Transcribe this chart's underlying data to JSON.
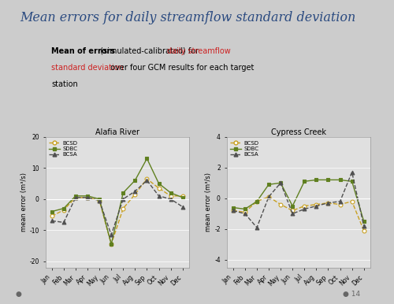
{
  "title": "Mean errors for daily streamflow standard deviation",
  "months": [
    "Jan",
    "Feb",
    "Mar",
    "Apr",
    "May",
    "Jun",
    "Jul",
    "Aug",
    "Sep",
    "Oct",
    "Nov",
    "Dec"
  ],
  "alafia": {
    "title": "Alafia River",
    "ylabel": "mean error (m³/s)",
    "ylim": [
      -22,
      20
    ],
    "yticks": [
      -20,
      -10,
      0,
      10,
      20
    ],
    "BCSD": [
      -5.5,
      -3.5,
      0.5,
      0.5,
      -0.5,
      -14.5,
      -3.0,
      1.5,
      6.5,
      3.5,
      1.0,
      1.0
    ],
    "SDBC": [
      -4.0,
      -3.0,
      1.0,
      1.0,
      0.0,
      -14.5,
      2.0,
      6.0,
      13.0,
      5.0,
      2.0,
      0.5
    ],
    "BCSA": [
      -7.0,
      -7.5,
      0.5,
      0.5,
      -0.5,
      -11.5,
      0.0,
      2.5,
      6.0,
      1.0,
      0.0,
      -2.5
    ]
  },
  "cypress": {
    "title": "Cypress Creek",
    "ylabel": "mean error (m³/s)",
    "ylim": [
      -4.5,
      4.0
    ],
    "yticks": [
      -4,
      -2,
      0,
      2,
      4
    ],
    "BCSD": [
      -0.8,
      -0.9,
      -0.2,
      0.1,
      -0.4,
      -0.8,
      -0.5,
      -0.4,
      -0.3,
      -0.4,
      -0.2,
      -2.1
    ],
    "SDBC": [
      -0.6,
      -0.7,
      -0.2,
      0.9,
      1.0,
      -0.5,
      1.1,
      1.2,
      1.2,
      1.2,
      1.1,
      -1.5
    ],
    "BCSA": [
      -0.8,
      -1.0,
      -1.9,
      0.1,
      1.0,
      -1.0,
      -0.7,
      -0.5,
      -0.3,
      -0.2,
      1.7,
      -1.8
    ]
  },
  "colors": {
    "BCSD": "#c8a020",
    "SDBC": "#608020",
    "BCSA": "#505050"
  },
  "bg_color": "#e0e0e0",
  "slide_bg": "#cccccc"
}
